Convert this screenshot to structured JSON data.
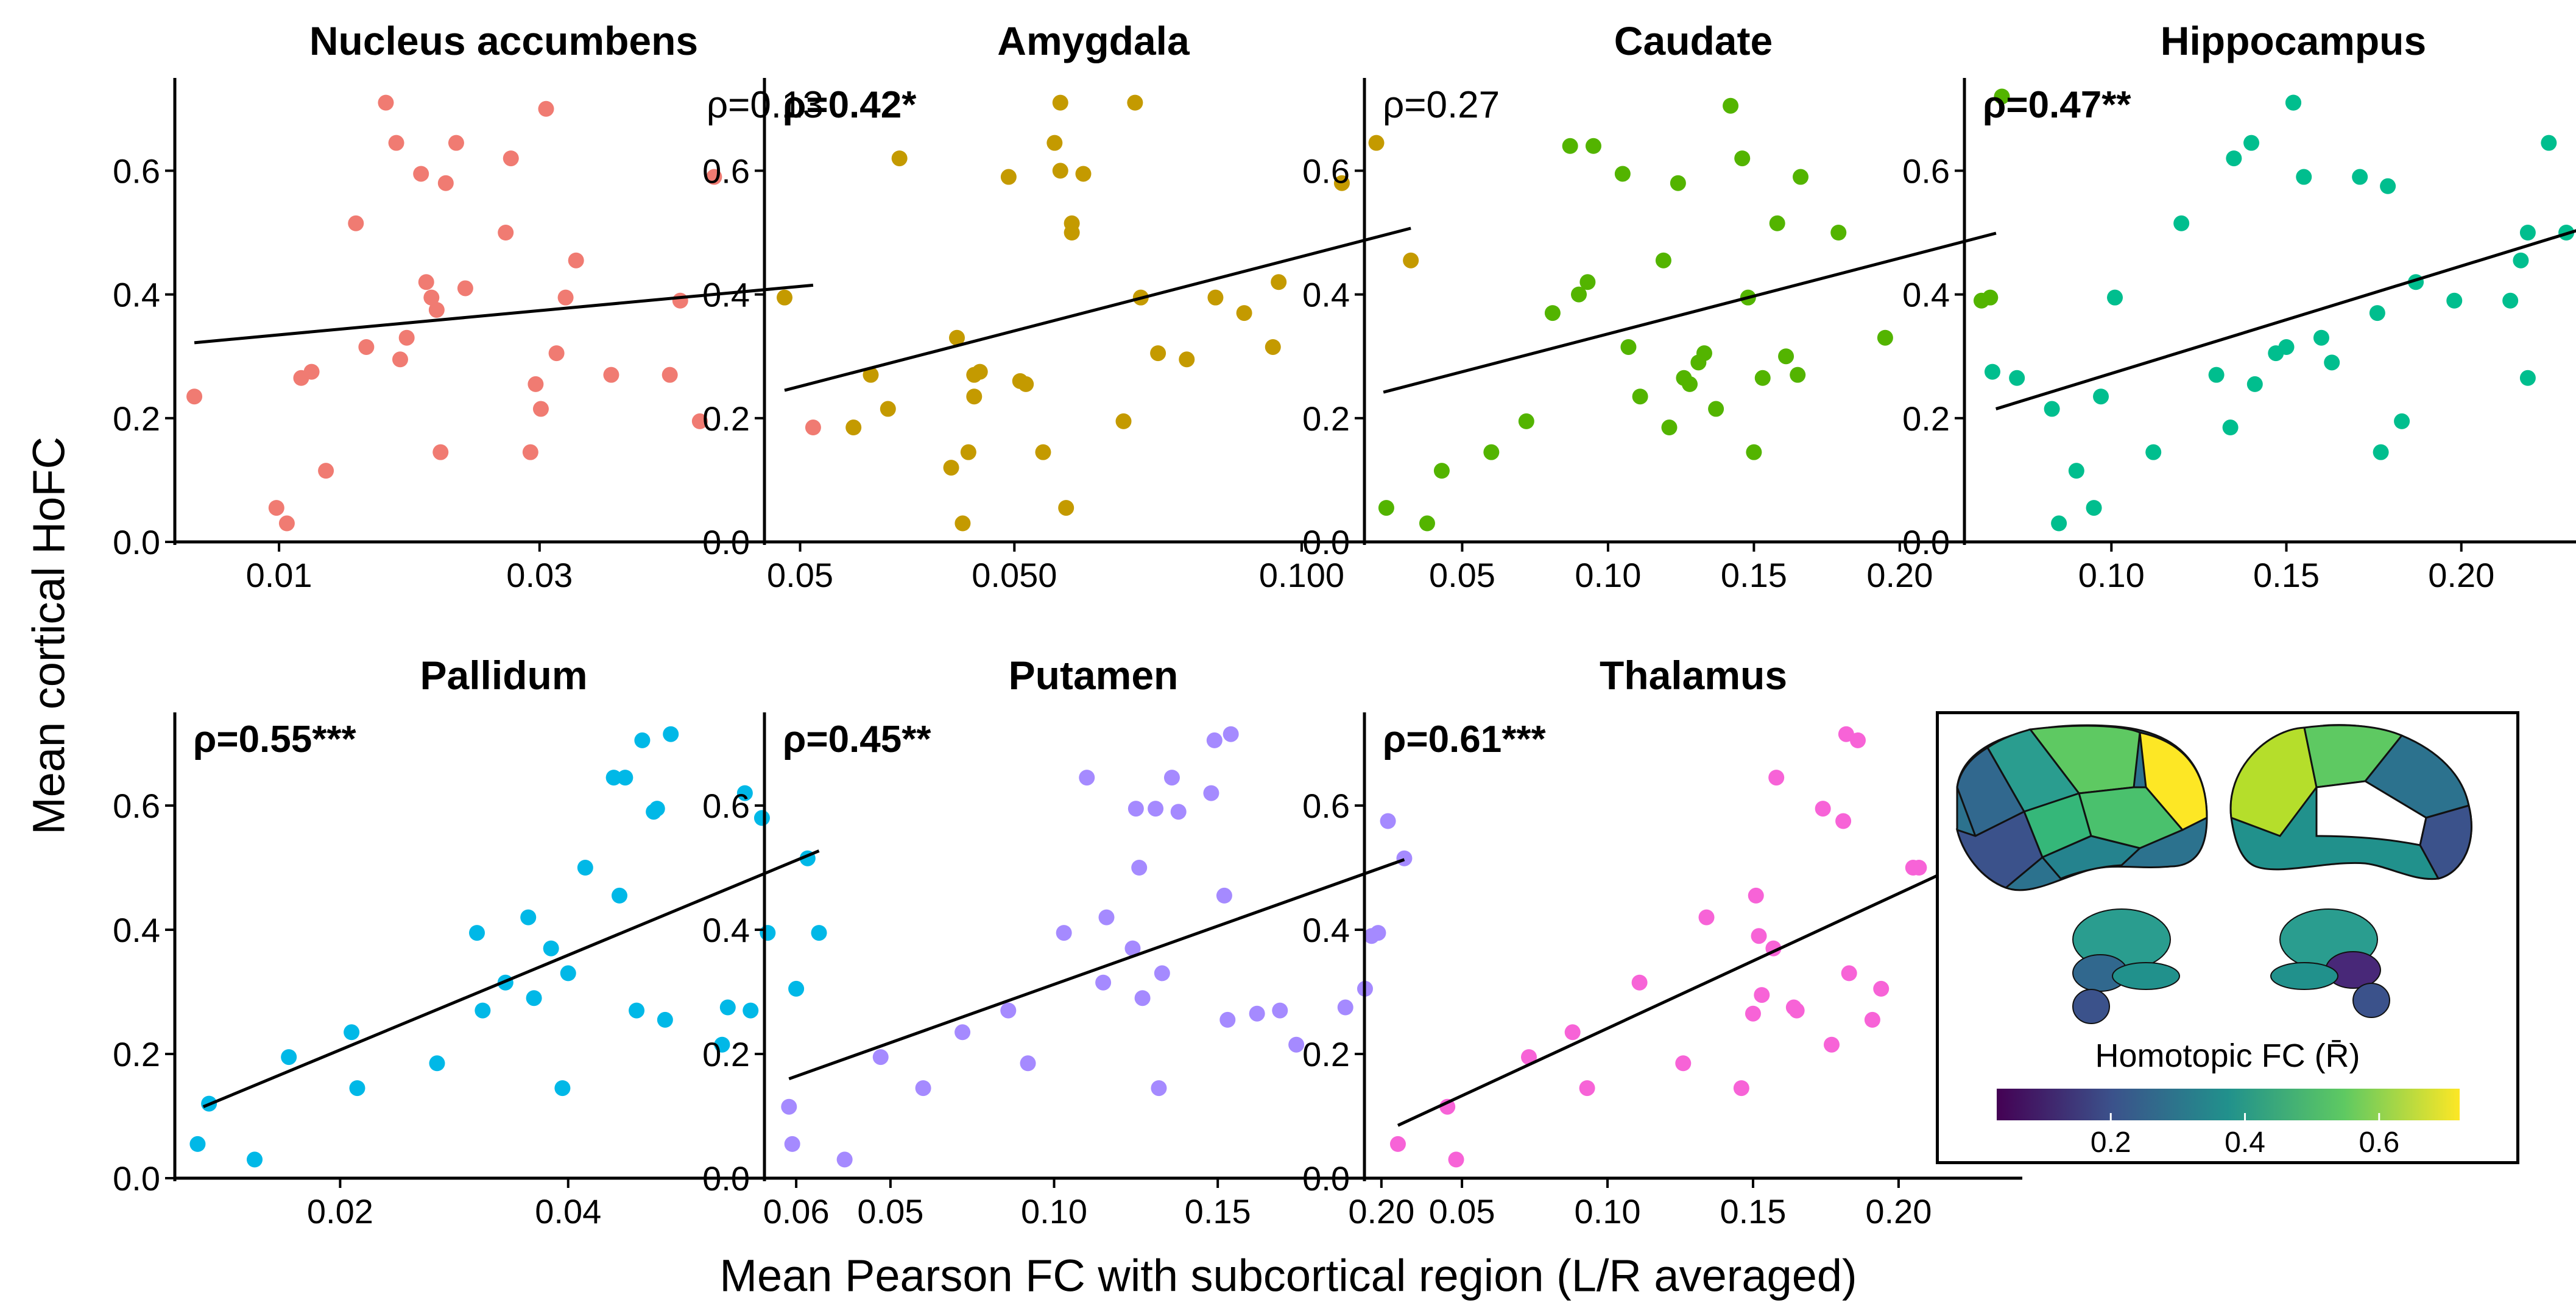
{
  "figure": {
    "ylabel": "Mean cortical HoFC",
    "xlabel": "Mean Pearson FC with subcortical region (L/R averaged)"
  },
  "colors": {
    "regression_line": "#000000",
    "nucleus_accumbens": "#F07B72",
    "amygdala": "#C49A00",
    "caudate": "#53B400",
    "hippocampus": "#00BE8E",
    "pallidum": "#00B8E7",
    "putamen": "#A58AFF",
    "thalamus": "#F763D7"
  },
  "chart_data": [
    {
      "type": "scatter",
      "title": "Nucleus accumbens",
      "annotation": "ρ=0.13",
      "annotation_bold": false,
      "annotation_position": "top-right",
      "color": "#F07B72",
      "xlim": [
        0.002,
        0.0525
      ],
      "ylim": [
        0,
        0.75
      ],
      "xticks": [
        0.01,
        0.03,
        0.05
      ],
      "xtick_labels": [
        "0.01",
        "0.03",
        "0.05"
      ],
      "yticks": [
        0.0,
        0.2,
        0.4,
        0.6
      ],
      "ytick_labels": [
        "0.0",
        "0.2",
        "0.4",
        "0.6"
      ],
      "fit": {
        "x": [
          0.0035,
          0.051
        ],
        "y": [
          0.322,
          0.415
        ]
      },
      "x": [
        0.0035,
        0.0098,
        0.0106,
        0.0117,
        0.0125,
        0.0136,
        0.0159,
        0.0167,
        0.0182,
        0.019,
        0.0193,
        0.0198,
        0.0209,
        0.0213,
        0.0217,
        0.0221,
        0.0224,
        0.0228,
        0.0236,
        0.0243,
        0.0274,
        0.0278,
        0.0293,
        0.0297,
        0.0301,
        0.0305,
        0.0313,
        0.032,
        0.0328,
        0.0355,
        0.04,
        0.0408,
        0.0423,
        0.0434,
        0.051
      ],
      "y": [
        0.235,
        0.055,
        0.03,
        0.265,
        0.275,
        0.115,
        0.515,
        0.315,
        0.71,
        0.645,
        0.295,
        0.33,
        0.595,
        0.42,
        0.395,
        0.375,
        0.145,
        0.58,
        0.645,
        0.41,
        0.5,
        0.62,
        0.145,
        0.255,
        0.215,
        0.7,
        0.305,
        0.395,
        0.455,
        0.27,
        0.27,
        0.39,
        0.195,
        0.59,
        0.185
      ]
    },
    {
      "type": "scatter",
      "title": "Amygdala",
      "annotation": "ρ=0.42*",
      "annotation_bold": true,
      "annotation_position": "top-left",
      "color": "#C49A00",
      "xlim": [
        0.0065,
        0.121
      ],
      "ylim": [
        0,
        0.75
      ],
      "xticks": [
        0.05,
        0.1
      ],
      "xtick_labels": [
        "0.050",
        "0.100"
      ],
      "yticks": [
        0.0,
        0.2,
        0.4,
        0.6
      ],
      "ytick_labels": [
        "0.0",
        "0.2",
        "0.4",
        "0.6"
      ],
      "fit": {
        "x": [
          0.01,
          0.119
        ],
        "y": [
          0.245,
          0.507
        ]
      },
      "x": [
        0.01,
        0.022,
        0.025,
        0.028,
        0.03,
        0.039,
        0.04,
        0.041,
        0.042,
        0.043,
        0.043,
        0.044,
        0.049,
        0.051,
        0.052,
        0.055,
        0.057,
        0.058,
        0.059,
        0.06,
        0.06,
        0.062,
        0.069,
        0.071,
        0.072,
        0.075,
        0.08,
        0.085,
        0.09,
        0.095,
        0.096,
        0.107,
        0.113,
        0.119,
        0.058
      ],
      "y": [
        0.395,
        0.185,
        0.27,
        0.215,
        0.62,
        0.12,
        0.33,
        0.03,
        0.145,
        0.235,
        0.27,
        0.275,
        0.59,
        0.26,
        0.255,
        0.145,
        0.645,
        0.71,
        0.055,
        0.515,
        0.5,
        0.595,
        0.195,
        0.71,
        0.395,
        0.305,
        0.295,
        0.395,
        0.37,
        0.315,
        0.42,
        0.58,
        0.645,
        0.455,
        0.6
      ]
    },
    {
      "type": "scatter",
      "title": "Caudate",
      "annotation": "ρ=0.27",
      "annotation_bold": false,
      "annotation_position": "top-left",
      "color": "#53B400",
      "xlim": [
        0.0165,
        0.242
      ],
      "ylim": [
        0,
        0.75
      ],
      "xticks": [
        0.05,
        0.1,
        0.15,
        0.2
      ],
      "xtick_labels": [
        "0.05",
        "0.10",
        "0.15",
        "0.20"
      ],
      "yticks": [
        0.0,
        0.2,
        0.4,
        0.6
      ],
      "ytick_labels": [
        "0.0",
        "0.2",
        "0.4",
        "0.6"
      ],
      "fit": {
        "x": [
          0.023,
          0.233
        ],
        "y": [
          0.242,
          0.499
        ]
      },
      "x": [
        0.024,
        0.038,
        0.043,
        0.06,
        0.072,
        0.081,
        0.087,
        0.09,
        0.093,
        0.095,
        0.105,
        0.107,
        0.111,
        0.119,
        0.121,
        0.124,
        0.126,
        0.128,
        0.131,
        0.133,
        0.137,
        0.142,
        0.146,
        0.148,
        0.15,
        0.153,
        0.158,
        0.161,
        0.165,
        0.166,
        0.179,
        0.195,
        0.228,
        0.231,
        0.235
      ],
      "y": [
        0.055,
        0.03,
        0.115,
        0.145,
        0.195,
        0.37,
        0.64,
        0.4,
        0.42,
        0.64,
        0.595,
        0.315,
        0.235,
        0.455,
        0.185,
        0.58,
        0.265,
        0.255,
        0.29,
        0.305,
        0.215,
        0.705,
        0.62,
        0.395,
        0.145,
        0.265,
        0.515,
        0.3,
        0.27,
        0.59,
        0.5,
        0.33,
        0.39,
        0.395,
        0.72
      ]
    },
    {
      "type": "scatter",
      "title": "Hippocampus",
      "annotation": "ρ=0.47**",
      "annotation_bold": true,
      "annotation_position": "top-left",
      "color": "#00BE8E",
      "xlim": [
        0.058,
        0.246
      ],
      "ylim": [
        0,
        0.75
      ],
      "xticks": [
        0.1,
        0.15,
        0.2
      ],
      "xtick_labels": [
        "0.10",
        "0.15",
        "0.20"
      ],
      "yticks": [
        0.0,
        0.2,
        0.4,
        0.6
      ],
      "ytick_labels": [
        "0.0",
        "0.2",
        "0.4",
        "0.6"
      ],
      "fit": {
        "x": [
          0.067,
          0.238
        ],
        "y": [
          0.215,
          0.512
        ]
      },
      "x": [
        0.066,
        0.073,
        0.083,
        0.085,
        0.09,
        0.095,
        0.097,
        0.101,
        0.112,
        0.12,
        0.13,
        0.134,
        0.135,
        0.14,
        0.141,
        0.147,
        0.15,
        0.152,
        0.152,
        0.155,
        0.16,
        0.163,
        0.171,
        0.176,
        0.177,
        0.179,
        0.183,
        0.187,
        0.198,
        0.214,
        0.217,
        0.219,
        0.219,
        0.225,
        0.23,
        0.239
      ],
      "y": [
        0.275,
        0.265,
        0.215,
        0.03,
        0.115,
        0.055,
        0.235,
        0.395,
        0.145,
        0.515,
        0.27,
        0.185,
        0.62,
        0.645,
        0.255,
        0.305,
        0.315,
        0.71,
        0.71,
        0.59,
        0.33,
        0.29,
        0.59,
        0.37,
        0.145,
        0.575,
        0.195,
        0.42,
        0.39,
        0.39,
        0.455,
        0.265,
        0.5,
        0.645,
        0.5,
        0.59
      ]
    },
    {
      "type": "scatter",
      "title": "Pallidum",
      "annotation": "ρ=0.55***",
      "annotation_bold": true,
      "annotation_position": "top-left",
      "color": "#00B8E7",
      "xlim": [
        0.0055,
        0.0632
      ],
      "ylim": [
        0,
        0.75
      ],
      "xticks": [
        0.02,
        0.04,
        0.06
      ],
      "xtick_labels": [
        "0.02",
        "0.04",
        "0.06"
      ],
      "yticks": [
        0.0,
        0.2,
        0.4,
        0.6
      ],
      "ytick_labels": [
        "0.0",
        "0.2",
        "0.4",
        "0.6"
      ],
      "fit": {
        "x": [
          0.008,
          0.062
        ],
        "y": [
          0.115,
          0.527
        ]
      },
      "x": [
        0.0075,
        0.0085,
        0.0125,
        0.0155,
        0.021,
        0.0215,
        0.0285,
        0.032,
        0.0325,
        0.0345,
        0.0365,
        0.037,
        0.0385,
        0.0395,
        0.04,
        0.0415,
        0.044,
        0.0445,
        0.045,
        0.046,
        0.0465,
        0.0475,
        0.0478,
        0.0485,
        0.049,
        0.0535,
        0.054,
        0.0555,
        0.056,
        0.057,
        0.0575,
        0.06,
        0.061,
        0.062
      ],
      "y": [
        0.055,
        0.12,
        0.03,
        0.195,
        0.235,
        0.145,
        0.185,
        0.395,
        0.27,
        0.315,
        0.42,
        0.29,
        0.37,
        0.145,
        0.33,
        0.5,
        0.645,
        0.455,
        0.645,
        0.27,
        0.705,
        0.59,
        0.595,
        0.255,
        0.715,
        0.215,
        0.275,
        0.62,
        0.27,
        0.58,
        0.395,
        0.305,
        0.515,
        0.395
      ]
    },
    {
      "type": "scatter",
      "title": "Putamen",
      "annotation": "ρ=0.45**",
      "annotation_bold": true,
      "annotation_position": "top-left",
      "color": "#A58AFF",
      "xlim": [
        0.0115,
        0.2125
      ],
      "ylim": [
        0,
        0.75
      ],
      "xticks": [
        0.05,
        0.1,
        0.15,
        0.2
      ],
      "xtick_labels": [
        "0.05",
        "0.10",
        "0.15",
        "0.20"
      ],
      "yticks": [
        0.0,
        0.2,
        0.4,
        0.6
      ],
      "ytick_labels": [
        "0.0",
        "0.2",
        "0.4",
        "0.6"
      ],
      "fit": {
        "x": [
          0.019,
          0.207
        ],
        "y": [
          0.16,
          0.513
        ]
      },
      "x": [
        0.019,
        0.02,
        0.036,
        0.047,
        0.06,
        0.072,
        0.086,
        0.092,
        0.103,
        0.11,
        0.115,
        0.116,
        0.124,
        0.125,
        0.126,
        0.127,
        0.131,
        0.132,
        0.133,
        0.136,
        0.138,
        0.148,
        0.149,
        0.152,
        0.153,
        0.154,
        0.162,
        0.169,
        0.174,
        0.189,
        0.195,
        0.197,
        0.199,
        0.202,
        0.207
      ],
      "y": [
        0.115,
        0.055,
        0.03,
        0.195,
        0.145,
        0.235,
        0.27,
        0.185,
        0.395,
        0.645,
        0.315,
        0.42,
        0.37,
        0.595,
        0.5,
        0.29,
        0.595,
        0.145,
        0.33,
        0.645,
        0.59,
        0.62,
        0.705,
        0.455,
        0.255,
        0.715,
        0.265,
        0.27,
        0.215,
        0.275,
        0.305,
        0.39,
        0.395,
        0.575,
        0.515
      ]
    },
    {
      "type": "scatter",
      "title": "Thalamus",
      "annotation": "ρ=0.61***",
      "annotation_bold": true,
      "annotation_position": "top-left",
      "color": "#F763D7",
      "xlim": [
        0.0165,
        0.2425
      ],
      "ylim": [
        0,
        0.75
      ],
      "xticks": [
        0.05,
        0.1,
        0.15,
        0.2
      ],
      "xtick_labels": [
        "0.05",
        "0.10",
        "0.15",
        "0.20"
      ],
      "yticks": [
        0.0,
        0.2,
        0.4,
        0.6
      ],
      "ytick_labels": [
        "0.0",
        "0.2",
        "0.4",
        "0.6"
      ],
      "fit": {
        "x": [
          0.028,
          0.233
        ],
        "y": [
          0.085,
          0.53
        ]
      },
      "x": [
        0.028,
        0.045,
        0.048,
        0.073,
        0.088,
        0.093,
        0.111,
        0.126,
        0.134,
        0.146,
        0.15,
        0.151,
        0.152,
        0.153,
        0.157,
        0.158,
        0.164,
        0.165,
        0.174,
        0.177,
        0.181,
        0.182,
        0.183,
        0.186,
        0.191,
        0.194,
        0.205,
        0.207,
        0.217,
        0.221,
        0.227,
        0.232,
        0.233,
        0.234
      ],
      "y": [
        0.055,
        0.115,
        0.03,
        0.195,
        0.235,
        0.145,
        0.315,
        0.185,
        0.42,
        0.145,
        0.265,
        0.455,
        0.39,
        0.295,
        0.37,
        0.645,
        0.275,
        0.27,
        0.595,
        0.215,
        0.575,
        0.715,
        0.33,
        0.705,
        0.255,
        0.305,
        0.5,
        0.5,
        0.62,
        0.515,
        0.27,
        0.59,
        0.395,
        0.39
      ]
    }
  ],
  "inset": {
    "legend_title": "Homotopic FC (R̄)",
    "colorbar_ticks": [
      {
        "value": 0.2,
        "label": "0.2"
      },
      {
        "value": 0.4,
        "label": "0.4"
      },
      {
        "value": 0.6,
        "label": "0.6"
      }
    ],
    "colorbar_range": [
      0.03,
      0.72
    ],
    "colormap": [
      "#440154",
      "#3b528b",
      "#21918c",
      "#5ec962",
      "#fde725"
    ]
  }
}
